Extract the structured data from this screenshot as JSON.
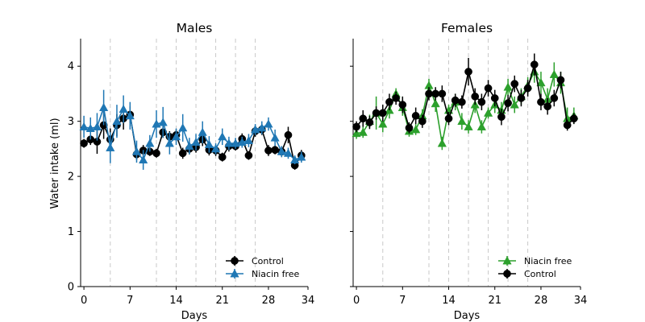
{
  "figure": {
    "shared_ylabel": "Water intake (ml)"
  },
  "chart_data": [
    {
      "type": "line",
      "title": "Males",
      "xlabel": "Days",
      "ylabel": "Water intake (ml)",
      "xlim": [
        -0.5,
        34
      ],
      "ylim": [
        0,
        4.5
      ],
      "xticks": [
        0,
        7,
        14,
        21,
        28,
        34
      ],
      "yticks": [
        0,
        1,
        2,
        3,
        4
      ],
      "vlines": [
        4,
        11,
        14,
        17,
        20,
        23,
        26
      ],
      "legend_position": "lower-right",
      "legend": [
        "Control",
        "Niacin free"
      ],
      "series": [
        {
          "name": "Control",
          "color": "#000000",
          "marker": "circle",
          "x": [
            0,
            1,
            2,
            3,
            4,
            5,
            6,
            7,
            8,
            9,
            10,
            11,
            12,
            13,
            14,
            15,
            16,
            17,
            18,
            19,
            20,
            21,
            22,
            23,
            24,
            25,
            26,
            27,
            28,
            29,
            30,
            31,
            32,
            33
          ],
          "y": [
            2.6,
            2.67,
            2.63,
            2.93,
            2.67,
            2.93,
            3.05,
            3.12,
            2.4,
            2.47,
            2.45,
            2.42,
            2.8,
            2.72,
            2.75,
            2.42,
            2.5,
            2.53,
            2.67,
            2.48,
            2.47,
            2.35,
            2.55,
            2.55,
            2.68,
            2.38,
            2.82,
            2.85,
            2.47,
            2.48,
            2.45,
            2.75,
            2.2,
            2.38
          ],
          "err": [
            0.08,
            0.1,
            0.22,
            0.25,
            0.2,
            0.2,
            0.2,
            0.15,
            0.1,
            0.1,
            0.08,
            0.08,
            0.1,
            0.1,
            0.1,
            0.1,
            0.1,
            0.1,
            0.12,
            0.1,
            0.1,
            0.08,
            0.1,
            0.08,
            0.1,
            0.08,
            0.1,
            0.1,
            0.1,
            0.08,
            0.1,
            0.15,
            0.08,
            0.1
          ]
        },
        {
          "name": "Niacin free",
          "color": "#1f77b4",
          "marker": "triangle",
          "x": [
            0,
            1,
            2,
            3,
            4,
            5,
            6,
            7,
            8,
            9,
            10,
            11,
            12,
            13,
            14,
            15,
            16,
            17,
            18,
            19,
            20,
            21,
            22,
            23,
            24,
            25,
            26,
            27,
            28,
            29,
            30,
            31,
            32,
            33
          ],
          "y": [
            2.9,
            2.87,
            2.9,
            3.25,
            2.52,
            3.0,
            3.22,
            3.1,
            2.45,
            2.3,
            2.6,
            2.95,
            2.98,
            2.6,
            2.72,
            2.88,
            2.55,
            2.62,
            2.8,
            2.58,
            2.5,
            2.72,
            2.6,
            2.6,
            2.62,
            2.65,
            2.85,
            2.88,
            2.95,
            2.7,
            2.45,
            2.42,
            2.3,
            2.35
          ],
          "err": [
            0.2,
            0.2,
            0.25,
            0.32,
            0.28,
            0.3,
            0.25,
            0.25,
            0.2,
            0.18,
            0.15,
            0.25,
            0.28,
            0.2,
            0.15,
            0.25,
            0.15,
            0.15,
            0.2,
            0.15,
            0.1,
            0.15,
            0.12,
            0.1,
            0.1,
            0.12,
            0.1,
            0.12,
            0.12,
            0.15,
            0.1,
            0.1,
            0.08,
            0.1
          ]
        }
      ]
    },
    {
      "type": "line",
      "title": "Females",
      "xlabel": "Days",
      "ylabel": "",
      "xlim": [
        -0.5,
        34
      ],
      "ylim": [
        0,
        4.5
      ],
      "xticks": [
        0,
        7,
        14,
        21,
        28,
        34
      ],
      "yticks": [
        0,
        1,
        2,
        3,
        4
      ],
      "vlines": [
        4,
        11,
        14,
        17,
        20,
        23,
        26
      ],
      "legend_position": "lower-right",
      "legend": [
        "Niacin free",
        "Control"
      ],
      "series": [
        {
          "name": "Niacin free",
          "color": "#2ca02c",
          "marker": "triangle",
          "x": [
            0,
            1,
            2,
            3,
            4,
            5,
            6,
            7,
            8,
            9,
            10,
            11,
            12,
            13,
            14,
            15,
            16,
            17,
            18,
            19,
            20,
            21,
            22,
            23,
            24,
            25,
            26,
            27,
            28,
            29,
            30,
            31,
            32,
            33
          ],
          "y": [
            2.78,
            2.8,
            3.0,
            3.15,
            2.95,
            3.2,
            3.5,
            3.25,
            2.82,
            2.85,
            3.1,
            3.65,
            3.32,
            2.6,
            3.2,
            3.35,
            3.0,
            2.9,
            3.3,
            2.9,
            3.15,
            3.3,
            3.2,
            3.62,
            3.3,
            3.45,
            3.65,
            3.9,
            3.7,
            3.4,
            3.85,
            3.7,
            3.05,
            3.1
          ],
          "err": [
            0.1,
            0.1,
            0.12,
            0.3,
            0.15,
            0.15,
            0.1,
            0.15,
            0.1,
            0.1,
            0.12,
            0.12,
            0.15,
            0.12,
            0.1,
            0.15,
            0.15,
            0.12,
            0.15,
            0.12,
            0.1,
            0.15,
            0.15,
            0.15,
            0.15,
            0.15,
            0.15,
            0.2,
            0.2,
            0.2,
            0.22,
            0.2,
            0.2,
            0.15
          ]
        },
        {
          "name": "Control",
          "color": "#000000",
          "marker": "circle",
          "x": [
            0,
            1,
            2,
            3,
            4,
            5,
            6,
            7,
            8,
            9,
            10,
            11,
            12,
            13,
            14,
            15,
            16,
            17,
            18,
            19,
            20,
            21,
            22,
            23,
            24,
            25,
            26,
            27,
            28,
            29,
            30,
            31,
            32,
            33
          ],
          "y": [
            2.9,
            3.05,
            2.98,
            3.15,
            3.15,
            3.35,
            3.42,
            3.3,
            2.88,
            3.1,
            3.0,
            3.5,
            3.5,
            3.5,
            3.05,
            3.38,
            3.35,
            3.9,
            3.45,
            3.35,
            3.6,
            3.42,
            3.08,
            3.33,
            3.68,
            3.42,
            3.6,
            4.03,
            3.35,
            3.27,
            3.42,
            3.75,
            2.93,
            3.05
          ],
          "err": [
            0.1,
            0.15,
            0.12,
            0.12,
            0.15,
            0.15,
            0.12,
            0.15,
            0.1,
            0.15,
            0.12,
            0.12,
            0.12,
            0.15,
            0.12,
            0.12,
            0.12,
            0.25,
            0.15,
            0.15,
            0.15,
            0.15,
            0.15,
            0.15,
            0.15,
            0.15,
            0.15,
            0.2,
            0.15,
            0.15,
            0.15,
            0.15,
            0.1,
            0.1
          ]
        }
      ]
    }
  ]
}
